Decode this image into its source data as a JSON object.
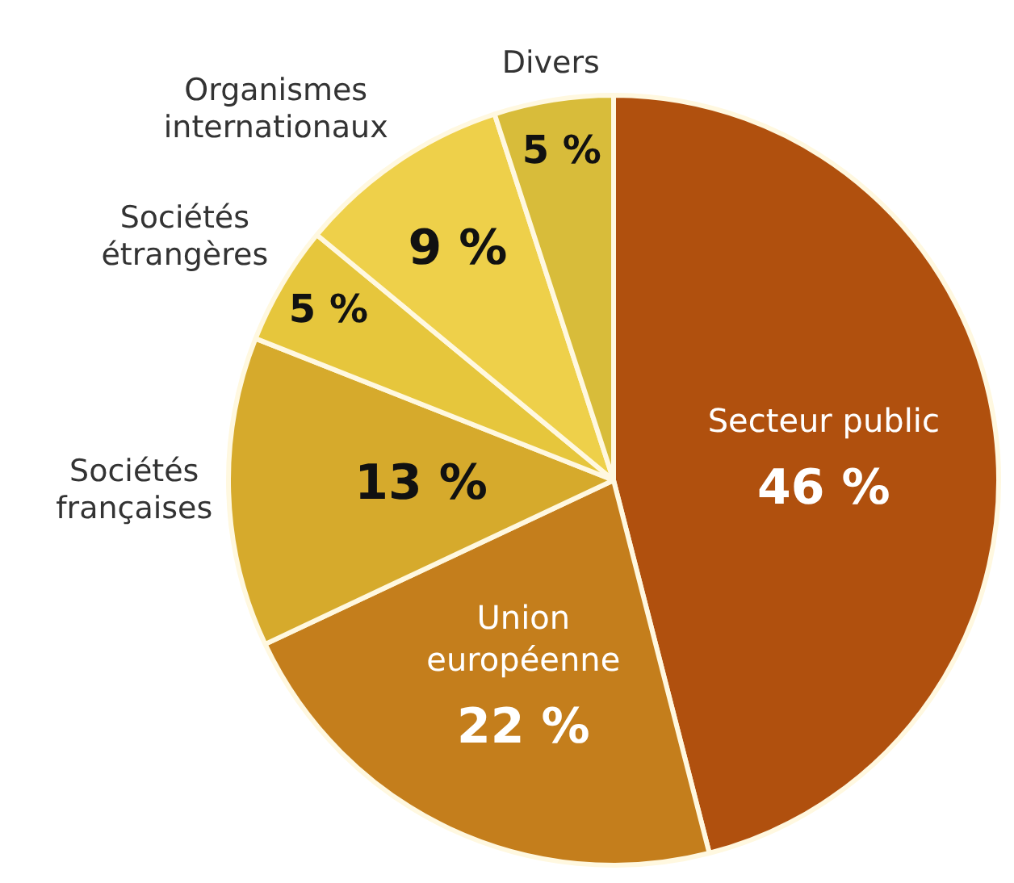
{
  "chart_data": {
    "type": "pie",
    "categories": [
      "Secteur public",
      "Union européenne",
      "Sociétés françaises",
      "Sociétés étrangères",
      "Organismes internationaux",
      "Divers"
    ],
    "values": [
      46,
      22,
      13,
      5,
      9,
      5
    ],
    "value_labels": [
      "46 %",
      "22 %",
      "13 %",
      "5 %",
      "9 %",
      "5 %"
    ],
    "colors": [
      "#b0500e",
      "#c47e1c",
      "#d6aa2c",
      "#e6c63c",
      "#eed04a",
      "#d8bc3a"
    ],
    "legend": false
  }
}
